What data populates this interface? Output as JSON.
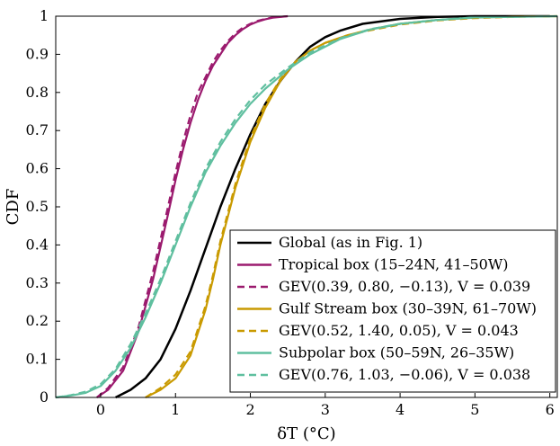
{
  "chart_data": {
    "type": "line",
    "xlabel": "δT (°C)",
    "ylabel": "CDF",
    "xlim": [
      -0.6,
      6.1
    ],
    "ylim": [
      0,
      1
    ],
    "x_ticks": [
      "0",
      "1",
      "2",
      "3",
      "4",
      "5",
      "6"
    ],
    "y_ticks": [
      "0",
      "0.1",
      "0.2",
      "0.3",
      "0.4",
      "0.5",
      "0.6",
      "0.7",
      "0.8",
      "0.9",
      "1"
    ],
    "grid": false,
    "legend_position": "bottom-right",
    "colors": {
      "global": "#000000",
      "tropical": "#9b1a6e",
      "gulf": "#c99a00",
      "subpolar": "#5fbf9f"
    },
    "series": [
      {
        "name": "Global (as in Fig. 1)",
        "style": "solid",
        "color_key": "global",
        "x": [
          0.2,
          0.4,
          0.6,
          0.8,
          1.0,
          1.2,
          1.4,
          1.6,
          1.8,
          2.0,
          2.2,
          2.4,
          2.6,
          2.8,
          3.0,
          3.2,
          3.5,
          4.0,
          4.5,
          5.0,
          6.0
        ],
        "y": [
          0.0,
          0.02,
          0.05,
          0.1,
          0.18,
          0.28,
          0.39,
          0.5,
          0.6,
          0.69,
          0.77,
          0.83,
          0.88,
          0.92,
          0.945,
          0.962,
          0.98,
          0.993,
          0.998,
          1.0,
          1.0
        ]
      },
      {
        "name": "Tropical box (15–24N, 41–50W)",
        "style": "solid",
        "color_key": "tropical",
        "x": [
          -0.05,
          0.1,
          0.3,
          0.5,
          0.7,
          0.9,
          1.0,
          1.1,
          1.2,
          1.3,
          1.4,
          1.5,
          1.6,
          1.7,
          1.8,
          1.9,
          2.0,
          2.1,
          2.2,
          2.3,
          2.5
        ],
        "y": [
          0.0,
          0.02,
          0.07,
          0.17,
          0.31,
          0.48,
          0.57,
          0.65,
          0.72,
          0.78,
          0.83,
          0.87,
          0.9,
          0.93,
          0.95,
          0.966,
          0.978,
          0.986,
          0.992,
          0.996,
          1.0
        ]
      },
      {
        "name": "GEV(0.39, 0.80, −0.13), V = 0.039",
        "style": "dashed",
        "color_key": "tropical",
        "x": [
          -0.05,
          0.1,
          0.3,
          0.5,
          0.7,
          0.9,
          1.0,
          1.1,
          1.2,
          1.3,
          1.4,
          1.5,
          1.6,
          1.7,
          1.8,
          1.9,
          2.0,
          2.1,
          2.2,
          2.3,
          2.5
        ],
        "y": [
          0.0,
          0.025,
          0.08,
          0.18,
          0.33,
          0.5,
          0.59,
          0.67,
          0.74,
          0.8,
          0.84,
          0.88,
          0.91,
          0.935,
          0.955,
          0.97,
          0.98,
          0.988,
          0.993,
          0.997,
          1.0
        ]
      },
      {
        "name": "Gulf Stream box (30–39N, 61–70W)",
        "style": "solid",
        "color_key": "gulf",
        "x": [
          0.6,
          0.8,
          1.0,
          1.2,
          1.4,
          1.5,
          1.6,
          1.8,
          2.0,
          2.2,
          2.4,
          2.6,
          2.8,
          3.0,
          3.3,
          3.6,
          4.0,
          4.5,
          5.0,
          5.5,
          6.1
        ],
        "y": [
          0.0,
          0.02,
          0.05,
          0.11,
          0.23,
          0.31,
          0.4,
          0.55,
          0.67,
          0.76,
          0.83,
          0.88,
          0.91,
          0.93,
          0.95,
          0.965,
          0.98,
          0.99,
          0.996,
          0.999,
          1.0
        ]
      },
      {
        "name": "GEV(0.52, 1.40, 0.05), V = 0.043",
        "style": "dashed",
        "color_key": "gulf",
        "x": [
          0.6,
          0.8,
          1.0,
          1.2,
          1.4,
          1.5,
          1.6,
          1.8,
          2.0,
          2.2,
          2.4,
          2.6,
          2.8,
          3.0,
          3.3,
          3.6,
          4.0,
          4.5,
          5.0,
          5.5,
          6.1
        ],
        "y": [
          0.0,
          0.025,
          0.06,
          0.12,
          0.24,
          0.32,
          0.41,
          0.56,
          0.68,
          0.77,
          0.835,
          0.88,
          0.91,
          0.93,
          0.95,
          0.963,
          0.978,
          0.989,
          0.995,
          0.998,
          1.0
        ]
      },
      {
        "name": "Subpolar box (50–59N, 26–35W)",
        "style": "solid",
        "color_key": "subpolar",
        "x": [
          -0.6,
          -0.4,
          -0.2,
          0.0,
          0.2,
          0.4,
          0.6,
          0.8,
          1.0,
          1.2,
          1.4,
          1.6,
          1.8,
          2.0,
          2.2,
          2.5,
          2.8,
          3.2,
          3.6,
          4.0,
          4.5,
          5.0,
          6.1
        ],
        "y": [
          0.0,
          0.005,
          0.012,
          0.03,
          0.07,
          0.13,
          0.21,
          0.3,
          0.4,
          0.5,
          0.59,
          0.66,
          0.72,
          0.77,
          0.81,
          0.86,
          0.9,
          0.94,
          0.965,
          0.98,
          0.99,
          0.997,
          1.0
        ]
      },
      {
        "name": "GEV(0.76, 1.03, −0.06), V = 0.038",
        "style": "dashed",
        "color_key": "subpolar",
        "x": [
          -0.6,
          -0.4,
          -0.2,
          0.0,
          0.2,
          0.4,
          0.6,
          0.8,
          1.0,
          1.2,
          1.4,
          1.6,
          1.8,
          2.0,
          2.2,
          2.5,
          2.8,
          3.2,
          3.6,
          4.0,
          4.5,
          5.0,
          6.1
        ],
        "y": [
          0.0,
          0.006,
          0.015,
          0.035,
          0.075,
          0.14,
          0.22,
          0.31,
          0.41,
          0.51,
          0.6,
          0.67,
          0.73,
          0.78,
          0.82,
          0.865,
          0.905,
          0.942,
          0.966,
          0.98,
          0.99,
          0.997,
          1.0
        ]
      }
    ]
  }
}
